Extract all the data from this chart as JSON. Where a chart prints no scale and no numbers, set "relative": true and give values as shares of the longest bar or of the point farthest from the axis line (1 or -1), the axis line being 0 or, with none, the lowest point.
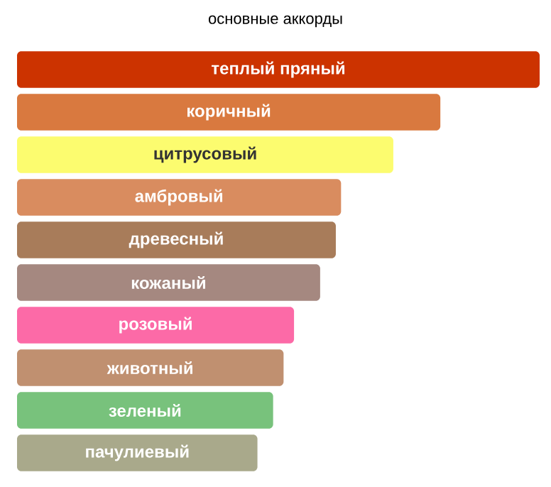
{
  "chart_data": {
    "type": "bar",
    "title": "основные аккорды",
    "orientation": "horizontal",
    "relative": true,
    "categories": [
      "теплый пряный",
      "коричный",
      "цитрусовый",
      "амбровый",
      "древесный",
      "кожаный",
      "розовый",
      "животный",
      "зеленый",
      "пачулиевый"
    ],
    "values": [
      1,
      0.81,
      0.72,
      0.62,
      0.61,
      0.58,
      0.53,
      0.51,
      0.49,
      0.46
    ],
    "colors": [
      "#cc3300",
      "#d9793f",
      "#fcfc6f",
      "#d98c5f",
      "#a87c5a",
      "#a58880",
      "#fc6aa7",
      "#c09070",
      "#78c27c",
      "#a9a98b"
    ]
  }
}
